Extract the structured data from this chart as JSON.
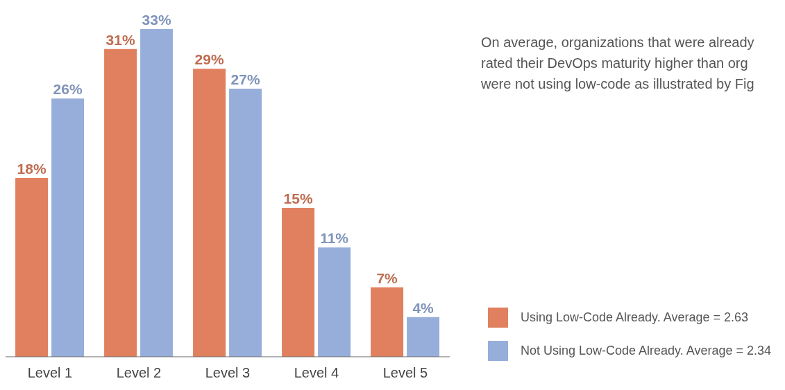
{
  "chart_data": {
    "type": "bar",
    "categories": [
      "Level 1",
      "Level 2",
      "Level 3",
      "Level 4",
      "Level 5"
    ],
    "series": [
      {
        "name": "Using Low-Code Already. Average = 2.63",
        "color": "#e0805f",
        "values": [
          18,
          31,
          29,
          15,
          7
        ],
        "value_labels": [
          "18%",
          "31%",
          "29%",
          "15%",
          "7%"
        ]
      },
      {
        "name": "Not Using Low-Code Already. Average = 2.34",
        "color": "#97aedb",
        "values": [
          26,
          33,
          27,
          11,
          4
        ],
        "value_labels": [
          "26%",
          "33%",
          "27%",
          "11%",
          "4%"
        ]
      }
    ],
    "grid": false,
    "legend": "right",
    "annotations": [
      "On average, organizations that were already rated their DevOps maturity higher than org were not using low-code as illustrated by Fig"
    ]
  }
}
